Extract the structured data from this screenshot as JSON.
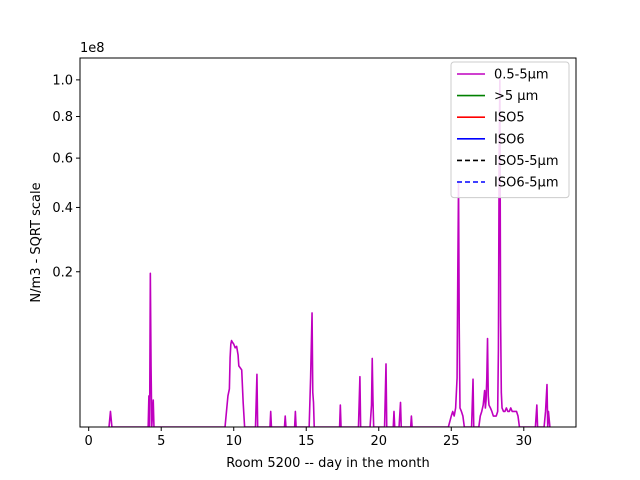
{
  "chart_data": {
    "type": "line",
    "title": "",
    "xlabel": "Room 5200 -- day in the month",
    "ylabel": "N/m3 - SQRT scale",
    "offset_text": "1e8",
    "y_scale": "sqrt",
    "xlim": [
      -0.6,
      33.6
    ],
    "ylim": [
      0,
      1.13
    ],
    "x_ticks": [
      0,
      5,
      10,
      15,
      20,
      25,
      30
    ],
    "y_ticks": [
      0.2,
      0.4,
      0.6,
      0.8,
      1.0
    ],
    "x_tick_labels": [
      "0",
      "5",
      "10",
      "15",
      "20",
      "25",
      "30"
    ],
    "y_tick_labels": [
      "0.2",
      "0.4",
      "0.6",
      "0.8",
      "1.0"
    ],
    "grid": false,
    "legend_position": "upper right",
    "legend": [
      {
        "name": "0.5-5µm",
        "color": "#bf00bf",
        "dash": "solid"
      },
      {
        "name": ">5 µm",
        "color": "#008000",
        "dash": "solid"
      },
      {
        "name": "ISO5",
        "color": "#ff0000",
        "dash": "solid"
      },
      {
        "name": "ISO6",
        "color": "#0000ff",
        "dash": "solid"
      },
      {
        "name": "ISO5-5µm",
        "color": "#000000",
        "dash": "dashed"
      },
      {
        "name": "ISO6-5µm",
        "color": "#0000ff",
        "dash": "dashed"
      }
    ],
    "series": [
      {
        "name": "0.5-5µm",
        "color": "#bf00bf",
        "points": [
          [
            1.4,
            0
          ],
          [
            1.5,
            0.002
          ],
          [
            1.6,
            0
          ],
          [
            4.1,
            0
          ],
          [
            4.15,
            0.008
          ],
          [
            4.2,
            0
          ],
          [
            4.25,
            0.196
          ],
          [
            4.3,
            0.03
          ],
          [
            4.35,
            0
          ],
          [
            4.45,
            0.006
          ],
          [
            4.5,
            0
          ],
          [
            9.4,
            0
          ],
          [
            9.5,
            0.002
          ],
          [
            9.6,
            0.008
          ],
          [
            9.7,
            0.012
          ],
          [
            9.75,
            0.04
          ],
          [
            9.8,
            0.057
          ],
          [
            9.85,
            0.062
          ],
          [
            9.9,
            0.06
          ],
          [
            10.0,
            0.057
          ],
          [
            10.1,
            0.052
          ],
          [
            10.2,
            0.054
          ],
          [
            10.3,
            0.043
          ],
          [
            10.35,
            0.031
          ],
          [
            10.45,
            0.029
          ],
          [
            10.55,
            0.027
          ],
          [
            10.65,
            0.005
          ],
          [
            10.75,
            0
          ],
          [
            11.5,
            0
          ],
          [
            11.6,
            0.023
          ],
          [
            11.65,
            0
          ],
          [
            12.5,
            0
          ],
          [
            12.55,
            0.002
          ],
          [
            12.6,
            0
          ],
          [
            13.5,
            0
          ],
          [
            13.55,
            0.001
          ],
          [
            13.6,
            0
          ],
          [
            14.2,
            0
          ],
          [
            14.25,
            0.002
          ],
          [
            14.3,
            0
          ],
          [
            15.2,
            0
          ],
          [
            15.3,
            0.02
          ],
          [
            15.4,
            0.108
          ],
          [
            15.45,
            0.01
          ],
          [
            15.5,
            0.005
          ],
          [
            15.55,
            0
          ],
          [
            17.3,
            0
          ],
          [
            17.35,
            0.004
          ],
          [
            17.4,
            0
          ],
          [
            18.6,
            0
          ],
          [
            18.7,
            0.021
          ],
          [
            18.75,
            0
          ],
          [
            19.4,
            0
          ],
          [
            19.5,
            0.004
          ],
          [
            19.55,
            0.039
          ],
          [
            19.6,
            0.006
          ],
          [
            19.65,
            0
          ],
          [
            20.4,
            0
          ],
          [
            20.5,
            0.033
          ],
          [
            20.55,
            0
          ],
          [
            21.0,
            0
          ],
          [
            21.05,
            0.002
          ],
          [
            21.1,
            0
          ],
          [
            21.4,
            0
          ],
          [
            21.5,
            0.005
          ],
          [
            21.55,
            0
          ],
          [
            22.2,
            0
          ],
          [
            22.25,
            0.001
          ],
          [
            22.3,
            0
          ],
          [
            24.8,
            0
          ],
          [
            25.0,
            0.001
          ],
          [
            25.1,
            0.002
          ],
          [
            25.2,
            0.001
          ],
          [
            25.3,
            0.003
          ],
          [
            25.4,
            0.02
          ],
          [
            25.45,
            0.2
          ],
          [
            25.5,
            0.5
          ],
          [
            25.55,
            0.08
          ],
          [
            25.6,
            0.003
          ],
          [
            25.7,
            0.002
          ],
          [
            25.8,
            0.001
          ],
          [
            25.9,
            0
          ],
          [
            26.4,
            0
          ],
          [
            26.5,
            0.019
          ],
          [
            26.55,
            0
          ],
          [
            26.9,
            0
          ],
          [
            27.0,
            0.001
          ],
          [
            27.1,
            0.002
          ],
          [
            27.2,
            0.004
          ],
          [
            27.3,
            0.011
          ],
          [
            27.35,
            0.003
          ],
          [
            27.4,
            0.006
          ],
          [
            27.45,
            0.02
          ],
          [
            27.5,
            0.065
          ],
          [
            27.55,
            0.008
          ],
          [
            27.6,
            0.004
          ],
          [
            27.7,
            0.003
          ],
          [
            27.8,
            0.002
          ],
          [
            27.9,
            0.001
          ],
          [
            28.0,
            0.001
          ],
          [
            28.1,
            0.001
          ],
          [
            28.2,
            0.002
          ],
          [
            28.25,
            0.05
          ],
          [
            28.3,
            0.6
          ],
          [
            28.35,
            1.0
          ],
          [
            28.4,
            0.1
          ],
          [
            28.45,
            0.01
          ],
          [
            28.5,
            0.003
          ],
          [
            28.6,
            0.002
          ],
          [
            28.7,
            0.002
          ],
          [
            28.8,
            0.003
          ],
          [
            28.9,
            0.002
          ],
          [
            29.0,
            0.002
          ],
          [
            29.1,
            0.003
          ],
          [
            29.2,
            0.002
          ],
          [
            29.3,
            0.002
          ],
          [
            29.4,
            0.002
          ],
          [
            29.5,
            0.002
          ],
          [
            29.6,
            0.001
          ],
          [
            29.7,
            0
          ],
          [
            30.8,
            0
          ],
          [
            30.9,
            0.004
          ],
          [
            30.95,
            0
          ],
          [
            31.4,
            0
          ],
          [
            31.5,
            0.002
          ],
          [
            31.6,
            0.015
          ],
          [
            31.65,
            0
          ],
          [
            31.7,
            0.002
          ],
          [
            31.8,
            0
          ]
        ]
      }
    ]
  }
}
